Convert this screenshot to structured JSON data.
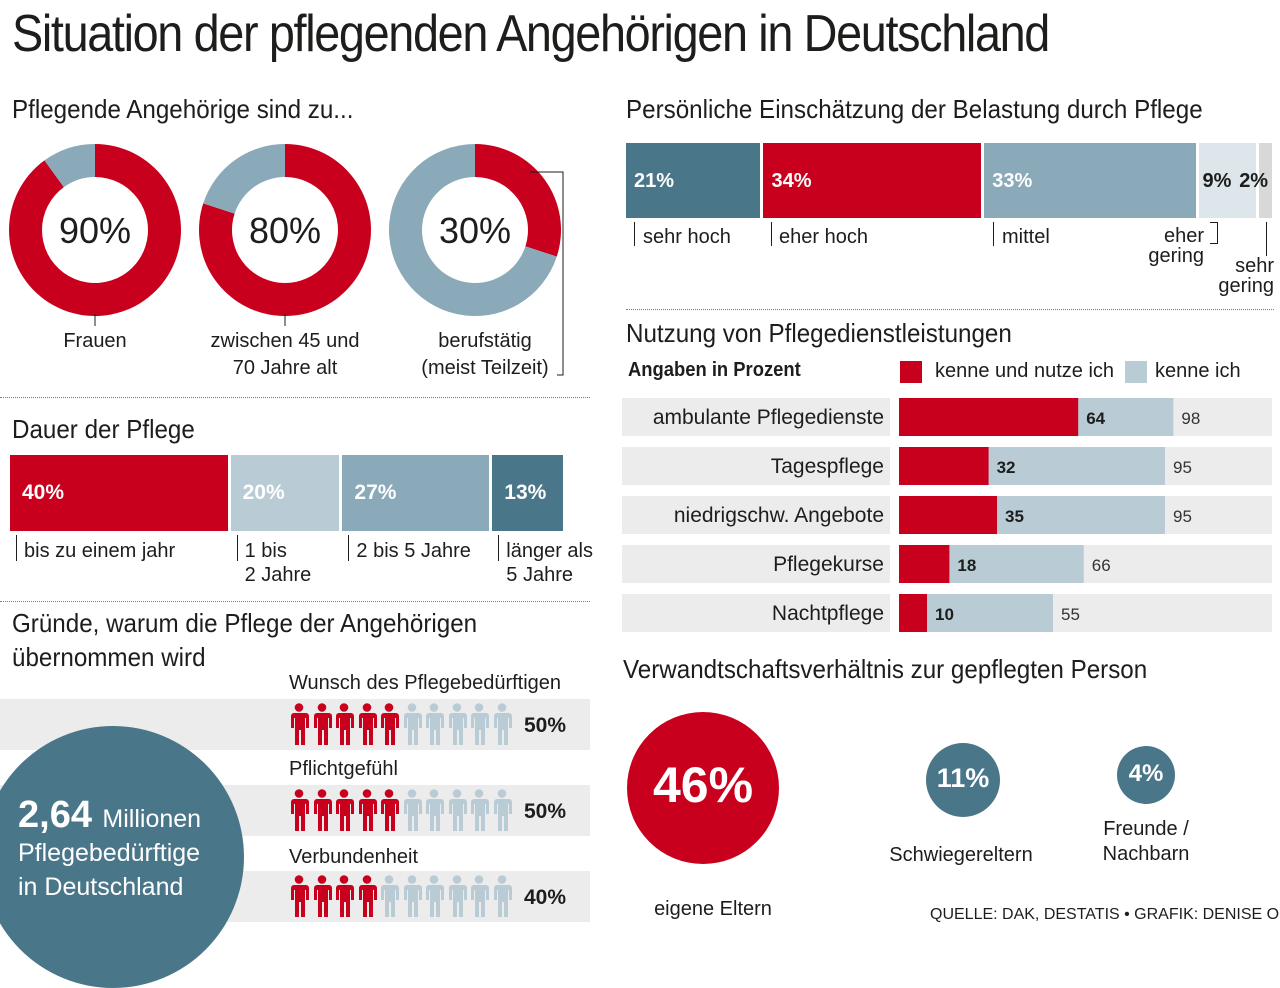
{
  "title": "Situation der pflegenden Angehörigen in Deutschland",
  "colors": {
    "red": "#c8001e",
    "dark": "#4a7689",
    "mid": "#8aa9b9",
    "light": "#b9ccd6",
    "pale": "#dde6ea",
    "grey": "#d8d8d8"
  },
  "donuts": {
    "heading": "Pflegende Angehörige sind zu...",
    "items": [
      {
        "value": 90,
        "label": "90%",
        "caption1": "Frauen",
        "caption2": ""
      },
      {
        "value": 80,
        "label": "80%",
        "caption1": "zwischen 45 und",
        "caption2": "70 Jahre alt"
      },
      {
        "value": 30,
        "label": "30%",
        "caption1": "berufstätig",
        "caption2": "(meist Teilzeit)"
      }
    ]
  },
  "duration": {
    "heading": "Dauer der Pflege",
    "segments": [
      {
        "value": 40,
        "label": "40%",
        "cap1": "bis zu einem jahr",
        "cap2": ""
      },
      {
        "value": 20,
        "label": "20%",
        "cap1": "1 bis",
        "cap2": "2 Jahre"
      },
      {
        "value": 27,
        "label": "27%",
        "cap1": "2 bis 5 Jahre",
        "cap2": ""
      },
      {
        "value": 13,
        "label": "13%",
        "cap1": "länger als",
        "cap2": "5 Jahre"
      }
    ]
  },
  "reasons": {
    "heading1": "Gründe, warum die Pflege der Angehörigen",
    "heading2": "übernommen wird",
    "items": [
      {
        "label": "Wunsch des Pflegebedürftigen",
        "value": 50,
        "pct": "50%"
      },
      {
        "label": "Pflichtgefühl",
        "value": 50,
        "pct": "50%"
      },
      {
        "label": "Verbundenheit",
        "value": 40,
        "pct": "40%"
      }
    ]
  },
  "total": {
    "number": "2,64",
    "unit": "Millionen",
    "line2": "Pflegebedürftige",
    "line3": "in Deutschland"
  },
  "burden": {
    "heading": "Persönliche Einschätzung der Belastung durch Pflege",
    "segments": [
      {
        "value": 21,
        "label": "21%",
        "cap1": "sehr hoch",
        "cap2": ""
      },
      {
        "value": 34,
        "label": "34%",
        "cap1": "eher hoch",
        "cap2": ""
      },
      {
        "value": 33,
        "label": "33%",
        "cap1": "mittel",
        "cap2": ""
      },
      {
        "value": 9,
        "label": "9%",
        "cap1": "eher",
        "cap2": "gering"
      },
      {
        "value": 2,
        "label": "2%",
        "cap1": "sehr",
        "cap2": "gering"
      }
    ]
  },
  "services": {
    "heading": "Nutzung von Pflegedienstleistungen",
    "subheading": "Angaben in Prozent",
    "legend": [
      "kenne und nutze ich",
      "kenne ich"
    ],
    "rows": [
      {
        "name": "ambulante Pflegedienste",
        "use": 64,
        "know": 98
      },
      {
        "name": "Tagespflege",
        "use": 32,
        "know": 95
      },
      {
        "name": "niedrigschw. Angebote",
        "use": 35,
        "know": 95
      },
      {
        "name": "Pflegekurse",
        "use": 18,
        "know": 66
      },
      {
        "name": "Nachtpflege",
        "use": 10,
        "know": 55
      }
    ]
  },
  "relation": {
    "heading": "Verwandtschaftsverhältnis zur gepflegten Person",
    "items": [
      {
        "value": 46,
        "label": "46%",
        "caption": "eigene Eltern"
      },
      {
        "value": 11,
        "label": "11%",
        "caption": "Schwiegereltern"
      },
      {
        "value": 4,
        "label": "4%",
        "caption1": "Freunde /",
        "caption2": "Nachbarn"
      }
    ]
  },
  "source": "QUELLE: DAK, DESTATIS • GRAFIK: DENISE OHMS",
  "chart_data": [
    {
      "type": "pie",
      "title": "Pflegende Angehörige sind zu...",
      "categories": [
        "Frauen",
        "zwischen 45 und 70 Jahre alt",
        "berufstätig (meist Teilzeit)"
      ],
      "values": [
        90,
        80,
        30
      ]
    },
    {
      "type": "bar",
      "title": "Dauer der Pflege",
      "categories": [
        "bis zu einem jahr",
        "1 bis 2 Jahre",
        "2 bis 5 Jahre",
        "länger als 5 Jahre"
      ],
      "values": [
        40,
        20,
        27,
        13
      ]
    },
    {
      "type": "bar",
      "title": "Persönliche Einschätzung der Belastung durch Pflege",
      "categories": [
        "sehr hoch",
        "eher hoch",
        "mittel",
        "eher gering",
        "sehr gering"
      ],
      "values": [
        21,
        34,
        33,
        9,
        2
      ]
    },
    {
      "type": "bar",
      "title": "Nutzung von Pflegedienstleistungen",
      "categories": [
        "ambulante Pflegedienste",
        "Tagespflege",
        "niedrigschw. Angebote",
        "Pflegekurse",
        "Nachtpflege"
      ],
      "series": [
        {
          "name": "kenne und nutze ich",
          "values": [
            64,
            32,
            35,
            18,
            10
          ]
        },
        {
          "name": "kenne ich",
          "values": [
            98,
            95,
            95,
            66,
            55
          ]
        }
      ]
    },
    {
      "type": "bar",
      "title": "Gründe, warum die Pflege der Angehörigen übernommen wird",
      "categories": [
        "Wunsch des Pflegebedürftigen",
        "Pflichtgefühl",
        "Verbundenheit"
      ],
      "values": [
        50,
        50,
        40
      ]
    },
    {
      "type": "scatter",
      "title": "Verwandtschaftsverhältnis zur gepflegten Person",
      "categories": [
        "eigene Eltern",
        "Schwiegereltern",
        "Freunde / Nachbarn"
      ],
      "values": [
        46,
        11,
        4
      ]
    }
  ]
}
